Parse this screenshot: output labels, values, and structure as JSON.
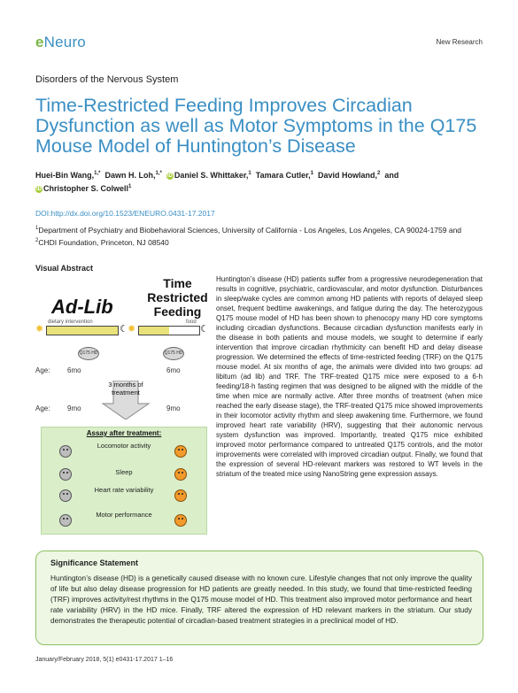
{
  "header": {
    "logo_e": "e",
    "logo_rest": "Neuro",
    "section": "New Research"
  },
  "category": "Disorders of the Nervous System",
  "title": "Time-Restricted Feeding Improves Circadian Dysfunction as well as Motor Symptoms in the Q175 Mouse Model of Huntington’s Disease",
  "authors": [
    {
      "name": "Huei-Bin Wang,",
      "sup": "1,*",
      "orcid": false
    },
    {
      "name": "Dawn H. Loh,",
      "sup": "1,*",
      "orcid": false
    },
    {
      "name": "Daniel S. Whittaker,",
      "sup": "1",
      "orcid": true
    },
    {
      "name": "Tamara Cutler,",
      "sup": "1",
      "orcid": false
    },
    {
      "name": "David Howland,",
      "sup": "2",
      "orcid": false
    },
    {
      "name": "and",
      "sup": "",
      "orcid": false
    },
    {
      "name": "Christopher S. Colwell",
      "sup": "1",
      "orcid": true
    }
  ],
  "doi": "DOI:http://dx.doi.org/10.1523/ENEURO.0431-17.2017",
  "affiliation": {
    "sup1": "1",
    "part1": "Department of Psychiatry and Biobehavioral Sciences, University of California - Los Angeles, Los Angeles, CA 90024-1759 and ",
    "sup2": "2",
    "part2": "CHDI Foundation, Princeton, NJ 08540"
  },
  "visual_abstract": {
    "heading": "Visual Abstract",
    "adlib_label": "Ad-Lib",
    "trf_label": "Time Restricted Feeding",
    "adlib_bar_text": "dietary intervention",
    "trf_bar_text": "food",
    "mouse_label": "Q175 HD",
    "age_label": "Age:",
    "age_left_1": "6mo",
    "age_right_1": "6mo",
    "arrow_text": "3 months of treatment",
    "age_left_2": "9mo",
    "age_right_2": "9mo",
    "assay_title": "Assay after treatment:",
    "assays": [
      "Locomotor activity",
      "Sleep",
      "Heart rate variability",
      "Motor performance"
    ]
  },
  "abstract": "Huntington’s disease (HD) patients suffer from a progressive neurodegeneration that results in cognitive, psychiatric, cardiovascular, and motor dysfunction. Disturbances in sleep/wake cycles are common among HD patients with reports of delayed sleep onset, frequent bedtime awakenings, and fatigue during the day. The heterozygous Q175 mouse model of HD has been shown to phenocopy many HD core symptoms including circadian dysfunctions. Because circadian dysfunction manifests early in the disease in both patients and mouse models, we sought to determine if early intervention that improve circadian rhythmicity can benefit HD and delay disease progression. We determined the effects of time-restricted feeding (TRF) on the Q175 mouse model. At six months of age, the animals were divided into two groups: ad libitum (ad lib) and TRF. The TRF-treated Q175 mice were exposed to a 6-h feeding/18-h fasting regimen that was designed to be aligned with the middle of the time when mice are normally active. After three months of treatment (when mice reached the early disease stage), the TRF-treated Q175 mice showed improvements in their locomotor activity rhythm and sleep awakening time. Furthermore, we found improved heart rate variability (HRV), suggesting that their autonomic nervous system dysfunction was improved. Importantly, treated Q175 mice exhibited improved motor performance compared to untreated Q175 controls, and the motor improvements were correlated with improved circadian output. Finally, we found that the expression of several HD-relevant markers was restored to WT levels in the striatum of the treated mice using NanoString gene expression assays.",
  "significance": {
    "heading": "Significance Statement",
    "text": "Huntington’s disease (HD) is a genetically caused disease with no known cure. Lifestyle changes that not only improve the quality of life but also delay disease progression for HD patients are greatly needed. In this study, we found that time-restricted feeding (TRF) improves activity/rest rhythms in the Q175 mouse model of HD. This treatment also improved motor performance and heart rate variability (HRV) in the HD mice. Finally, TRF altered the expression of HD relevant markers in the striatum. Our study demonstrates the therapeutic potential of circadian-based treatment strategies in a preclinical model of HD."
  },
  "footer": "January/February 2018, 5(1) e0431-17.2017 1–16"
}
